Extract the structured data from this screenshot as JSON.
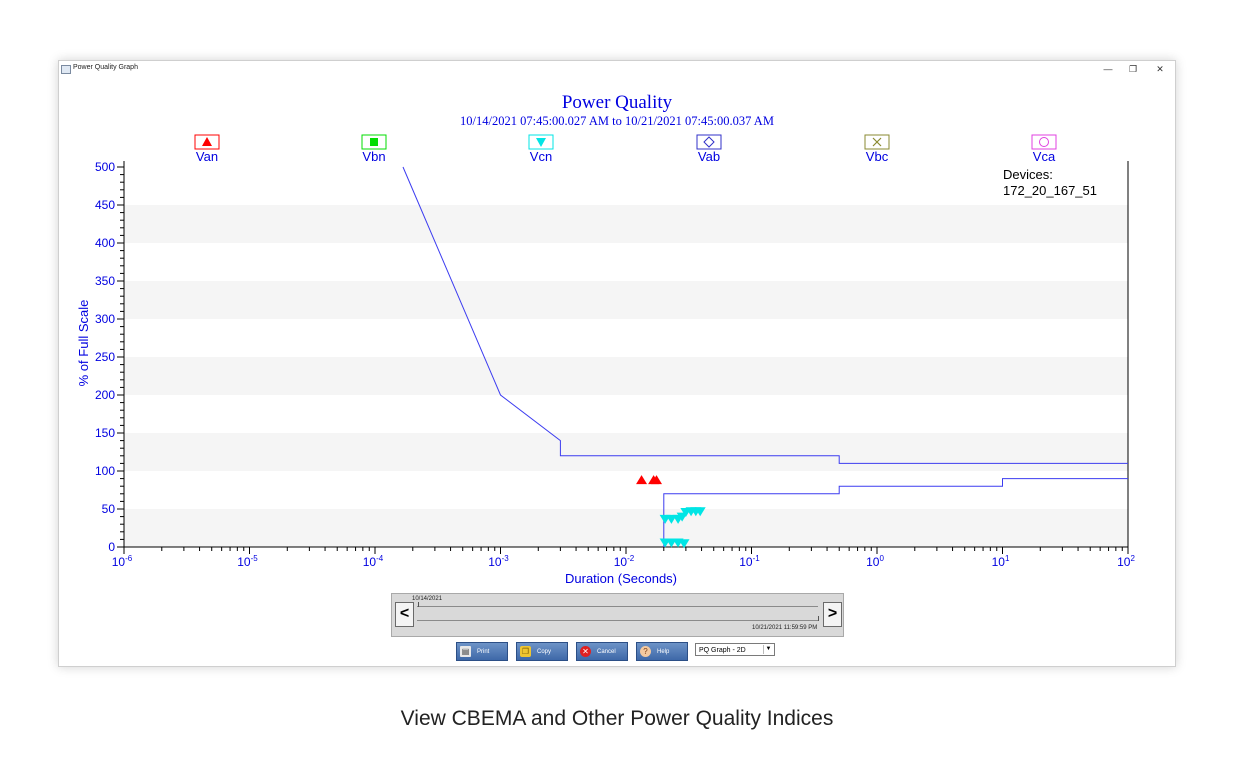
{
  "window": {
    "title": "Power Quality Graph",
    "controls": {
      "minimize": "—",
      "restore": "❐",
      "close": "✕"
    }
  },
  "chart": {
    "title": "Power Quality",
    "subtitle": "10/14/2021 07:45:00.027 AM to 10/21/2021 07:45:00.037 AM",
    "devices_label": "Devices:",
    "device": "172_20_167_51"
  },
  "chart_data": {
    "type": "scatter",
    "xlabel": "Duration (Seconds)",
    "ylabel": "% of Full Scale",
    "x_scale": "log",
    "xlim": [
      1e-06,
      100
    ],
    "ylim": [
      0,
      500
    ],
    "y_ticks": [
      0,
      50,
      100,
      150,
      200,
      250,
      300,
      350,
      400,
      450,
      500
    ],
    "x_ticks": [
      {
        "base": "10",
        "exp": "-6"
      },
      {
        "base": "10",
        "exp": "-5"
      },
      {
        "base": "10",
        "exp": "-4"
      },
      {
        "base": "10",
        "exp": "-3"
      },
      {
        "base": "10",
        "exp": "-2"
      },
      {
        "base": "10",
        "exp": "-1"
      },
      {
        "base": "10",
        "exp": "0"
      },
      {
        "base": "10",
        "exp": "1"
      },
      {
        "base": "10",
        "exp": "2"
      }
    ],
    "legend_position": "top",
    "legend": [
      {
        "name": "Van",
        "symbol": "triangle-up",
        "color": "#ff0000"
      },
      {
        "name": "Vbn",
        "symbol": "square",
        "color": "#00dd00"
      },
      {
        "name": "Vcn",
        "symbol": "triangle-down",
        "color": "#00e5e5"
      },
      {
        "name": "Vab",
        "symbol": "diamond",
        "color": "#3030c8"
      },
      {
        "name": "Vbc",
        "symbol": "x",
        "color": "#8a8a30"
      },
      {
        "name": "Vca",
        "symbol": "circle",
        "color": "#e040e0"
      }
    ],
    "curves": [
      {
        "points": [
          [
            0.000167,
            500
          ],
          [
            0.001,
            200
          ],
          [
            0.003,
            140
          ],
          [
            0.003,
            120
          ],
          [
            0.5,
            120
          ],
          [
            0.5,
            110
          ],
          [
            100,
            110
          ]
        ]
      },
      {
        "points": [
          [
            0.02,
            0
          ],
          [
            0.02,
            70
          ],
          [
            0.5,
            70
          ],
          [
            0.5,
            80
          ],
          [
            10,
            80
          ],
          [
            10,
            90
          ],
          [
            100,
            90
          ]
        ]
      }
    ],
    "series": [
      {
        "name": "Van",
        "points": [
          [
            0.0133,
            88
          ],
          [
            0.0166,
            88
          ],
          [
            0.0175,
            88
          ]
        ]
      },
      {
        "name": "Vcn",
        "points": [
          [
            0.0205,
            37
          ],
          [
            0.023,
            37
          ],
          [
            0.026,
            37
          ],
          [
            0.028,
            40
          ],
          [
            0.03,
            46
          ],
          [
            0.033,
            47
          ],
          [
            0.036,
            47
          ],
          [
            0.039,
            47
          ],
          [
            0.0205,
            6
          ],
          [
            0.023,
            6
          ],
          [
            0.026,
            6
          ],
          [
            0.029,
            5
          ]
        ]
      }
    ]
  },
  "timeline": {
    "prev": "<",
    "next": ">",
    "start_label": "10/14/2021",
    "end_label": "10/21/2021 11:59:59 PM"
  },
  "toolbar": {
    "print": "Print",
    "copy": "Copy",
    "cancel": "Cancel",
    "help": "Help",
    "view_select": "PQ Graph - 2D"
  },
  "caption": "View CBEMA and Other Power Quality Indices"
}
